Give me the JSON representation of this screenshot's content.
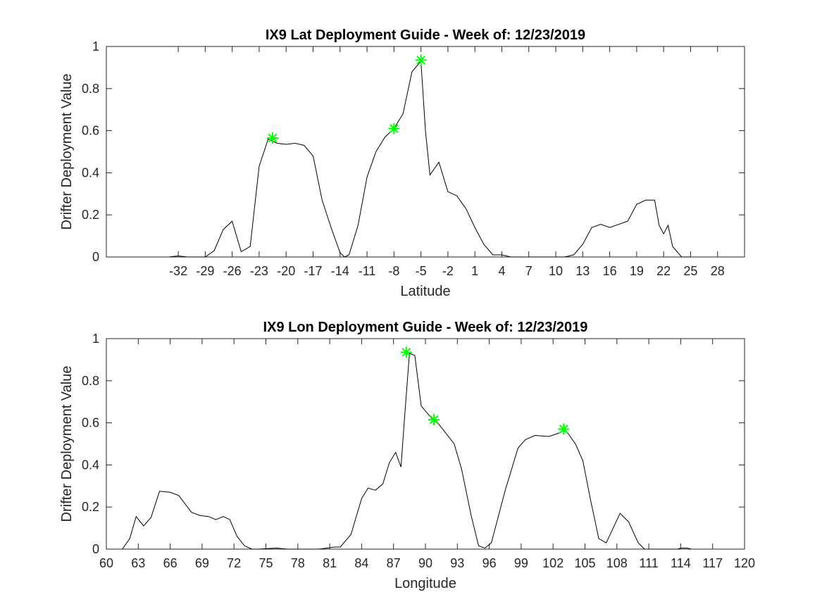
{
  "chart_data": [
    {
      "type": "line",
      "title": "IX9 Lat Deployment Guide - Week of: 12/23/2019",
      "xlabel": "Latitude",
      "ylabel": "Drifter Deployment Value",
      "xlim": [
        -40,
        31
      ],
      "ylim": [
        0,
        1
      ],
      "xticks": [
        -32,
        -29,
        -26,
        -23,
        -20,
        -17,
        -14,
        -11,
        -8,
        -5,
        -2,
        1,
        4,
        7,
        10,
        13,
        16,
        19,
        22,
        25,
        28
      ],
      "xtick_labels": [
        "-32",
        "-29",
        "-26",
        "-23",
        "-20",
        "-17",
        "-14",
        "-11",
        "-8",
        "-5",
        "-2",
        "1",
        "4",
        "7",
        "10",
        "13",
        "16",
        "19",
        "22",
        "25",
        "28"
      ],
      "yticks": [
        0,
        0.2,
        0.4,
        0.6,
        0.8,
        1
      ],
      "ytick_labels": [
        "0",
        "0.2",
        "0.4",
        "0.6",
        "0.8",
        "1"
      ],
      "grid": true,
      "line_color": "#000000",
      "marker_color": "#00ff00",
      "series": [
        {
          "x": [
            -33,
            -32,
            -31,
            -30,
            -29,
            -28,
            -27,
            -26,
            -25,
            -24,
            -23,
            -22,
            -21,
            -20,
            -19,
            -18,
            -17,
            -16,
            -15,
            -14,
            -13.5,
            -13,
            -12,
            -11,
            -10,
            -9,
            -8,
            -7,
            -6,
            -5,
            -4.5,
            -4,
            -3,
            -2,
            -1,
            0,
            1,
            2,
            3,
            4,
            5,
            6,
            7,
            8,
            9,
            10,
            11,
            12,
            13,
            14,
            15,
            16,
            17,
            18,
            19,
            20,
            21,
            21.5,
            22,
            22.5,
            23,
            24,
            25
          ],
          "y": [
            0,
            0.005,
            0,
            0,
            0,
            0.03,
            0.13,
            0.17,
            0.025,
            0.05,
            0.43,
            0.56,
            0.54,
            0.535,
            0.54,
            0.53,
            0.48,
            0.27,
            0.14,
            0.02,
            0,
            0.01,
            0.15,
            0.38,
            0.5,
            0.57,
            0.61,
            0.68,
            0.88,
            0.93,
            0.6,
            0.39,
            0.45,
            0.31,
            0.29,
            0.23,
            0.14,
            0.06,
            0.01,
            0.01,
            0,
            0,
            0,
            0,
            0,
            0,
            0,
            0.01,
            0.06,
            0.14,
            0.155,
            0.14,
            0.155,
            0.17,
            0.25,
            0.27,
            0.27,
            0.15,
            0.11,
            0.15,
            0.05,
            0,
            0
          ]
        }
      ],
      "markers": {
        "x": [
          -21.5,
          -8,
          -5
        ],
        "y": [
          0.565,
          0.61,
          0.935
        ]
      }
    },
    {
      "type": "line",
      "title": "IX9 Lon Deployment Guide - Week of: 12/23/2019",
      "xlabel": "Longitude",
      "ylabel": "Drifter Deployment Value",
      "xlim": [
        60,
        120
      ],
      "ylim": [
        0,
        1
      ],
      "xticks": [
        60,
        63,
        66,
        69,
        72,
        75,
        78,
        81,
        84,
        87,
        90,
        93,
        96,
        99,
        102,
        105,
        108,
        111,
        114,
        117,
        120
      ],
      "xtick_labels": [
        "60",
        "63",
        "66",
        "69",
        "72",
        "75",
        "78",
        "81",
        "84",
        "87",
        "90",
        "93",
        "96",
        "99",
        "102",
        "105",
        "108",
        "111",
        "114",
        "117",
        "120"
      ],
      "yticks": [
        0,
        0.2,
        0.4,
        0.6,
        0.8,
        1
      ],
      "ytick_labels": [
        "0",
        "0.2",
        "0.4",
        "0.6",
        "0.8",
        "1"
      ],
      "grid": true,
      "line_color": "#000000",
      "marker_color": "#00ff00",
      "series": [
        {
          "x": [
            61.5,
            62.2,
            62.8,
            63.5,
            64.2,
            65,
            66,
            66.8,
            68,
            68.8,
            69.6,
            70.3,
            71,
            71.6,
            72.3,
            73,
            73.7,
            74.3,
            76,
            77,
            80,
            81.5,
            82,
            83,
            84,
            84.6,
            85.3,
            86,
            86.6,
            87.2,
            87.7,
            88,
            88.5,
            89,
            89.6,
            90.6,
            91,
            92.7,
            93.4,
            94.3,
            95,
            95.6,
            96.2,
            97.5,
            98.7,
            99.4,
            100.3,
            101.6,
            102.5,
            103,
            103.4,
            104.1,
            104.8,
            105.5,
            106.3,
            107,
            108.3,
            109.1,
            110,
            110.6,
            111.3,
            113.7,
            114,
            114.6,
            115
          ],
          "y": [
            0,
            0.05,
            0.155,
            0.11,
            0.15,
            0.275,
            0.27,
            0.255,
            0.175,
            0.16,
            0.155,
            0.14,
            0.155,
            0.14,
            0.06,
            0.015,
            0,
            0,
            0.005,
            0,
            0,
            0.01,
            0.01,
            0.07,
            0.24,
            0.29,
            0.28,
            0.31,
            0.41,
            0.46,
            0.39,
            0.6,
            0.93,
            0.92,
            0.68,
            0.62,
            0.61,
            0.5,
            0.38,
            0.16,
            0.015,
            0.005,
            0.03,
            0.28,
            0.48,
            0.52,
            0.54,
            0.535,
            0.55,
            0.565,
            0.55,
            0.5,
            0.42,
            0.24,
            0.05,
            0.03,
            0.17,
            0.13,
            0.03,
            0,
            0,
            0,
            0.005,
            0.005,
            0
          ]
        }
      ],
      "markers": {
        "x": [
          88.2,
          90.8,
          103
        ],
        "y": [
          0.935,
          0.615,
          0.57
        ]
      }
    }
  ]
}
